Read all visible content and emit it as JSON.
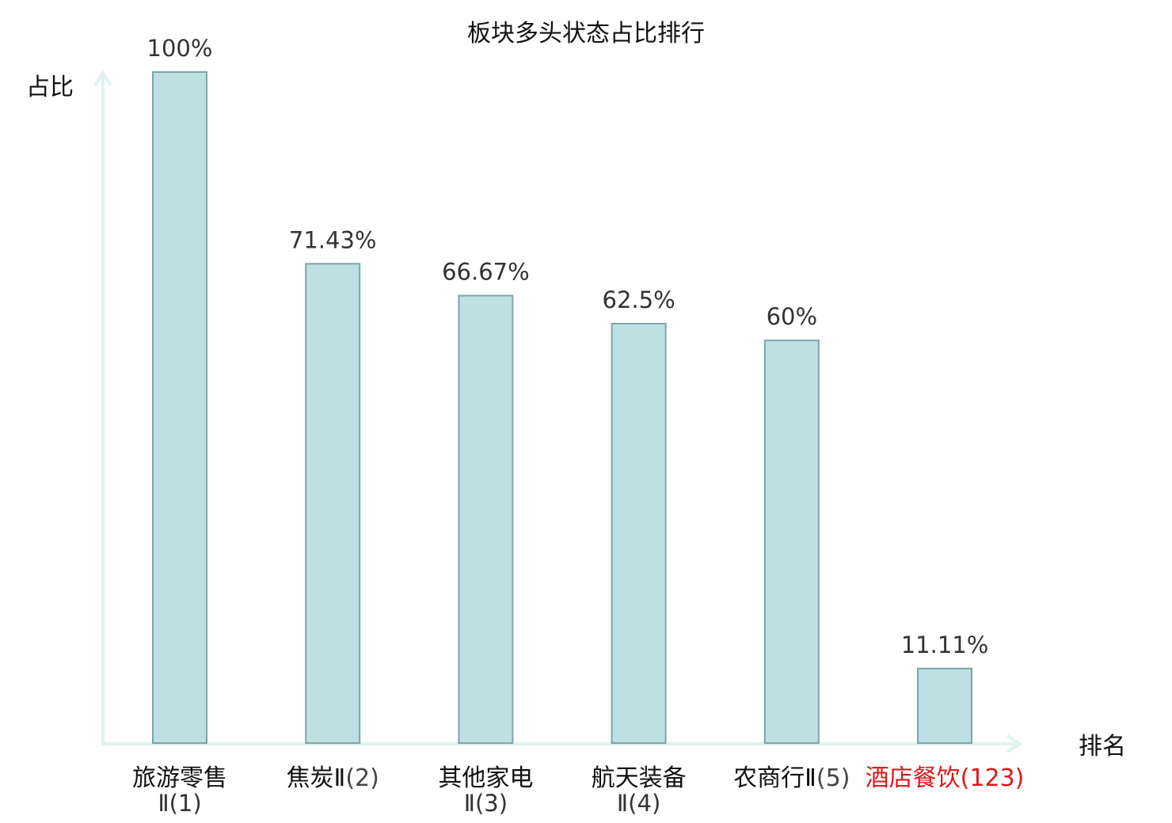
{
  "chart_data": {
    "type": "bar",
    "title": "板块多头状态占比排行",
    "ylabel": "占比",
    "xlabel": "排名",
    "ylim": [
      0,
      100
    ],
    "grid": false,
    "categories": [
      {
        "name": "旅游零售",
        "rank": "Ⅱ(1)",
        "highlight": false
      },
      {
        "name": "焦炭Ⅱ",
        "rank": "(2)",
        "highlight": false
      },
      {
        "name": "其他家电",
        "rank": "Ⅱ(3)",
        "highlight": false
      },
      {
        "name": "航天装备",
        "rank": "Ⅱ(4)",
        "highlight": false
      },
      {
        "name": "农商行Ⅱ",
        "rank": "(5)",
        "highlight": false
      },
      {
        "name": "酒店餐饮",
        "rank": "(123)",
        "highlight": true
      }
    ],
    "values": [
      100,
      71.43,
      66.67,
      62.5,
      60,
      11.11
    ],
    "value_labels": [
      "100%",
      "71.43%",
      "66.67%",
      "62.5%",
      "60%",
      "11.11%"
    ],
    "colors": {
      "bar_fill": "#bde0e3",
      "bar_stroke": "#7fa4a8",
      "axis": "#dff2ef",
      "highlight_text": "#e0161a"
    }
  }
}
